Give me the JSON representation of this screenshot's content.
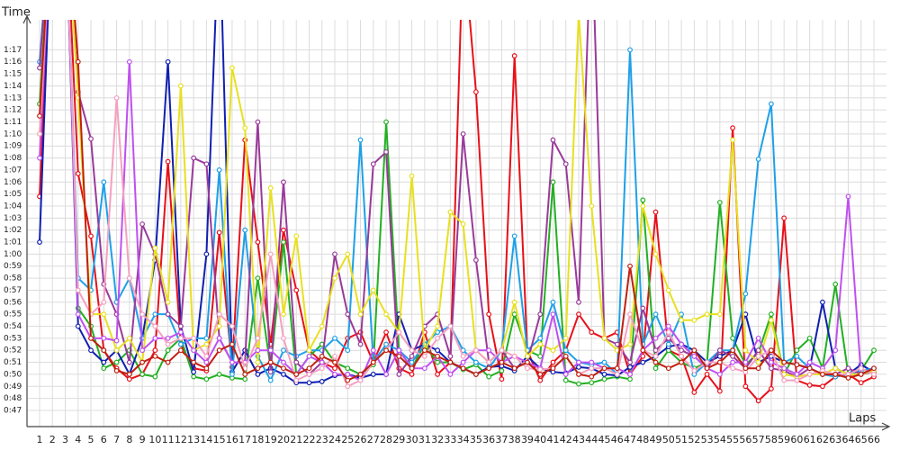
{
  "chart_data": {
    "type": "line",
    "title": "Time",
    "x_label": "Laps",
    "categories": [
      "1",
      "2",
      "3",
      "4",
      "5",
      "6",
      "7",
      "8",
      "9",
      "10",
      "11",
      "12",
      "13",
      "14",
      "15",
      "16",
      "17",
      "18",
      "19",
      "20",
      "21",
      "22",
      "23",
      "24",
      "25",
      "26",
      "27",
      "28",
      "29",
      "30",
      "31",
      "32",
      "33",
      "34",
      "35",
      "36",
      "37",
      "38",
      "39",
      "40",
      "41",
      "42",
      "43",
      "44",
      "45",
      "46",
      "47",
      "48",
      "49",
      "50",
      "51",
      "52",
      "53",
      "54",
      "55",
      "56",
      "57",
      "58",
      "59",
      "60",
      "61",
      "62",
      "63",
      "64",
      "65",
      "66"
    ],
    "ylim": [
      45.65,
      79.5
    ],
    "yticks": [
      {
        "value": 47,
        "label": "0:47"
      },
      {
        "value": 48,
        "label": "0:48"
      },
      {
        "value": 49,
        "label": "0:49"
      },
      {
        "value": 50,
        "label": "0:50"
      },
      {
        "value": 51,
        "label": "0:51"
      },
      {
        "value": 52,
        "label": "0:52"
      },
      {
        "value": 53,
        "label": "0:53"
      },
      {
        "value": 54,
        "label": "0:54"
      },
      {
        "value": 55,
        "label": "0:55"
      },
      {
        "value": 56,
        "label": "0:56"
      },
      {
        "value": 57,
        "label": "0:57"
      },
      {
        "value": 58,
        "label": "0:58"
      },
      {
        "value": 59,
        "label": "0:59"
      },
      {
        "value": 60,
        "label": "1:00"
      },
      {
        "value": 61,
        "label": "1:01"
      },
      {
        "value": 62,
        "label": "1:02"
      },
      {
        "value": 63,
        "label": "1:03"
      },
      {
        "value": 64,
        "label": "1:04"
      },
      {
        "value": 65,
        "label": "1:05"
      },
      {
        "value": 66,
        "label": "1:06"
      },
      {
        "value": 67,
        "label": "1:07"
      },
      {
        "value": 68,
        "label": "1:08"
      },
      {
        "value": 69,
        "label": "1:09"
      },
      {
        "value": 70,
        "label": "1:10"
      },
      {
        "value": 71,
        "label": "1:11"
      },
      {
        "value": 72,
        "label": "1:12"
      },
      {
        "value": 73,
        "label": "1:13"
      },
      {
        "value": 74,
        "label": "1:14"
      },
      {
        "value": 75,
        "label": "1:15"
      },
      {
        "value": 76,
        "label": "1:16"
      },
      {
        "value": 77,
        "label": "1:17"
      }
    ],
    "grid": true,
    "series": [
      {
        "color": "#e8101a",
        "values": [
          64.8,
          90,
          90,
          66.7,
          61.5,
          52,
          50.5,
          49.6,
          50,
          52,
          67.7,
          52.5,
          50.5,
          50.3,
          61.8,
          50.6,
          69.5,
          61,
          52.5,
          62,
          57,
          52,
          51,
          50.5,
          53,
          53.5,
          51,
          53.5,
          50.5,
          50,
          53.5,
          50,
          51,
          86,
          73.5,
          55,
          49.6,
          76.5,
          52,
          49.5,
          51,
          52,
          55,
          53.5,
          53,
          53.5,
          50,
          51.5,
          63.5,
          52,
          51.5,
          48.5,
          50,
          48.6,
          70.5,
          49,
          47.8,
          48.8,
          63,
          49.5,
          49.1,
          49,
          49.8,
          50,
          49.3,
          49.8
        ]
      },
      {
        "color": "#22b022",
        "values": [
          72.5,
          90,
          90,
          55.5,
          54,
          50.5,
          51,
          52,
          50,
          49.8,
          52,
          53,
          49.8,
          49.6,
          50,
          49.7,
          49.6,
          58,
          50.5,
          61,
          50,
          51.5,
          52.5,
          51,
          50.5,
          50,
          50.8,
          71,
          52,
          50.5,
          52.5,
          51,
          51,
          50.4,
          50.8,
          49.8,
          50.3,
          55,
          52,
          51.5,
          66,
          49.5,
          49.2,
          49.3,
          49.6,
          49.8,
          49.6,
          64.5,
          50.5,
          52,
          51,
          50.5,
          51,
          64.3,
          53,
          50.8,
          51.8,
          55,
          50,
          52,
          53,
          50.5,
          57.5,
          50,
          50.3,
          52
        ]
      },
      {
        "color": "#1020b0",
        "values": [
          61,
          90,
          90,
          54,
          52,
          51,
          52,
          50,
          53,
          59.5,
          76,
          54,
          50.2,
          60,
          88,
          50.2,
          52,
          50,
          50.5,
          50,
          49.3,
          49.3,
          49.4,
          49.9,
          50,
          49.7,
          50,
          50,
          55,
          52,
          52.5,
          52,
          51,
          50.5,
          50,
          50.6,
          50.7,
          50.3,
          51.5,
          50.5,
          50.2,
          50.1,
          50.6,
          50.5,
          50,
          49.9,
          50.6,
          51,
          51.5,
          52.3,
          52.5,
          52,
          51,
          51.5,
          52,
          55,
          51,
          51.5,
          51,
          50.8,
          50.5,
          56,
          50.5,
          50,
          50.8,
          50.2
        ]
      },
      {
        "color": "#1ea0e8",
        "values": [
          76,
          90,
          90,
          58,
          57,
          66,
          56,
          58,
          53,
          55,
          55,
          52.5,
          53,
          53,
          67,
          50,
          62,
          51.5,
          49.5,
          52,
          51.5,
          52,
          52,
          53,
          52,
          69.5,
          51,
          52.5,
          52,
          51,
          52.5,
          53.5,
          54,
          52,
          51,
          50.5,
          52,
          61.5,
          52,
          53,
          56,
          52,
          51,
          50.8,
          51,
          50,
          77,
          52.5,
          55,
          52.5,
          55,
          50,
          51,
          52,
          52,
          56.7,
          67.9,
          72.5,
          51,
          51.5,
          50.5,
          50,
          49.8,
          50,
          50.3,
          50.5
        ]
      },
      {
        "color": "#9a3a9a",
        "values": [
          75.5,
          90,
          90,
          73.5,
          69.6,
          57.5,
          55,
          51,
          62.5,
          60,
          55,
          54,
          68,
          67.5,
          53,
          51,
          51,
          71,
          50.2,
          66,
          51,
          50,
          51,
          60,
          55,
          52.5,
          67.5,
          68.5,
          50,
          51.5,
          54,
          55,
          51.5,
          70,
          59.5,
          51,
          52,
          50.5,
          51,
          55,
          69.5,
          67.5,
          56,
          88,
          53,
          52.5,
          51,
          55.5,
          52,
          53,
          52,
          51.5,
          50.5,
          52,
          51.5,
          50.5,
          52,
          50.5,
          50.3,
          49.8,
          50.5,
          50,
          50,
          50.5,
          50,
          50.2
        ]
      },
      {
        "color": "#e8e020",
        "values": [
          70,
          90,
          90,
          73,
          55,
          55,
          52,
          53,
          51,
          60.5,
          56,
          74,
          52,
          52.5,
          54,
          75.5,
          70.5,
          51,
          65.5,
          55,
          61.5,
          52,
          54,
          58,
          60,
          55,
          57,
          55,
          53.5,
          66.5,
          52,
          54,
          63.5,
          62.5,
          52,
          51,
          52,
          56,
          51.5,
          52.5,
          52,
          53,
          80,
          64,
          53,
          52,
          52.5,
          64,
          60,
          57,
          54.5,
          54.5,
          55,
          55,
          69.5,
          52,
          51,
          54.5,
          50,
          49.8,
          50,
          50,
          50.5,
          50,
          50,
          50.3
        ]
      },
      {
        "color": "#c050f0",
        "values": [
          68,
          90,
          90,
          55,
          53,
          53,
          52.8,
          76,
          52,
          53,
          53,
          53.5,
          52,
          51,
          53,
          51,
          51,
          52,
          52,
          51,
          50,
          51.5,
          51,
          50,
          50,
          49.5,
          52,
          50,
          52,
          50.5,
          50.5,
          51.5,
          50,
          51,
          52,
          52,
          51,
          51.5,
          51,
          50.5,
          55,
          50,
          51,
          51,
          50.5,
          50.5,
          50,
          52,
          53,
          54,
          52.5,
          51.5,
          50.5,
          50,
          51,
          51,
          53,
          51,
          50.5,
          50,
          51,
          50.5,
          52,
          64.8,
          50,
          50.5
        ]
      },
      {
        "color": "#f5a0c0",
        "values": [
          70,
          90,
          90,
          57,
          55,
          56,
          73,
          58,
          55,
          54,
          52.5,
          53,
          53,
          51.5,
          55,
          54,
          50.5,
          53,
          60,
          53,
          49.5,
          50,
          50.5,
          51.5,
          49,
          49.5,
          51,
          52,
          53.5,
          52,
          51.5,
          53,
          54,
          51.5,
          52,
          51,
          52,
          51.5,
          50.5,
          50.4,
          50.5,
          51.5,
          50,
          50.5,
          50.5,
          50,
          55,
          52,
          51.5,
          53.5,
          51.5,
          50.3,
          51,
          51,
          50.5,
          50.2,
          51.5,
          52,
          49.5,
          49.5,
          50,
          50.3,
          50,
          50,
          50.5,
          50
        ]
      },
      {
        "color": "#c02010",
        "values": [
          71.5,
          90,
          90,
          76,
          53,
          52,
          50.3,
          50,
          51,
          51.5,
          51,
          52,
          51,
          50.5,
          52,
          52.5,
          50,
          50.5,
          51,
          50.5,
          50,
          50.5,
          51.5,
          51,
          49.5,
          50,
          51,
          52,
          51.5,
          50.5,
          52,
          51.5,
          51,
          50.5,
          50,
          50.5,
          51,
          50.5,
          51,
          50,
          50.5,
          51.5,
          50,
          49.8,
          50.5,
          50.5,
          59,
          52,
          51,
          50.5,
          51,
          52,
          50.5,
          51,
          52,
          50.5,
          50.5,
          52,
          51,
          50.8,
          50.5,
          50,
          50,
          49.7,
          50,
          50.5
        ]
      }
    ]
  }
}
